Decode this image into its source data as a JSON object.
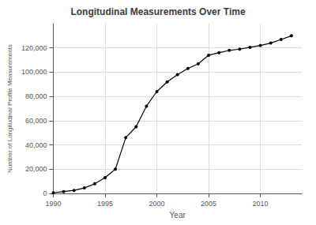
{
  "chart_data": {
    "type": "line",
    "title": "Longitudinal Measurements Over Time",
    "xlabel": "Year",
    "ylabel": "Number of Longitudinal Profile Measurements",
    "x": [
      1990,
      1991,
      1992,
      1993,
      1994,
      1995,
      1996,
      1997,
      1998,
      1999,
      2000,
      2001,
      2002,
      2003,
      2004,
      2005,
      2006,
      2007,
      2008,
      2009,
      2010,
      2011,
      2012,
      2013
    ],
    "values": [
      500,
      1500,
      2500,
      4500,
      8000,
      13000,
      20000,
      46000,
      55000,
      72000,
      84000,
      92000,
      98000,
      103000,
      107000,
      114000,
      116000,
      118000,
      119000,
      120500,
      122000,
      124000,
      127000,
      130000
    ],
    "color": "#000000",
    "marker": "circle",
    "xlim": [
      1990,
      2014
    ],
    "xticks": [
      1990,
      1995,
      2000,
      2005,
      2010
    ],
    "ylim": [
      0,
      140000
    ],
    "yticks": [
      0,
      {
        "value": 20000,
        "label": "20,000"
      },
      {
        "value": 40000,
        "label": "40,000"
      },
      {
        "value": 60000,
        "label": "60,000"
      },
      {
        "value": 80000,
        "label": "80,000"
      },
      {
        "value": 100000,
        "label": "100,000"
      },
      {
        "value": 120000,
        "label": "120,000"
      }
    ],
    "grid": true
  }
}
